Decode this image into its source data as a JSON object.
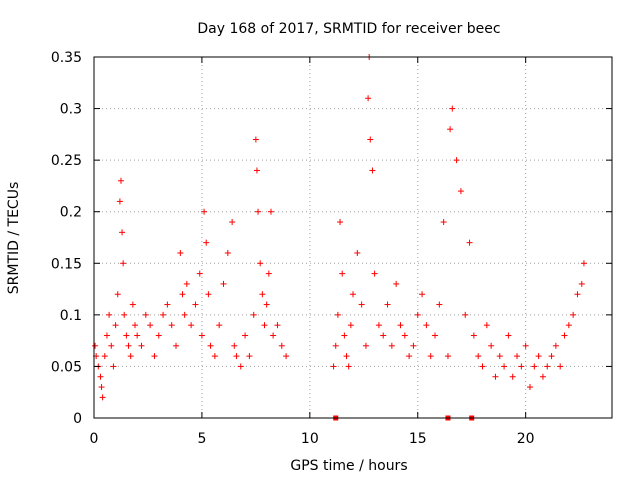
{
  "chart_data": {
    "type": "scatter",
    "title": "Day 168 of 2017, SRMTID for receiver beec",
    "xlabel": "GPS time / hours",
    "ylabel": "SRMTID / TECUs",
    "xlim": [
      0,
      24
    ],
    "ylim": [
      0,
      0.35
    ],
    "xticks": [
      0,
      5,
      10,
      15,
      20
    ],
    "xtick_labels": [
      "0",
      "5",
      "10",
      "15",
      "20"
    ],
    "yticks": [
      0,
      0.05,
      0.1,
      0.15,
      0.2,
      0.25,
      0.3,
      0.35
    ],
    "ytick_labels": [
      "0",
      "0.05",
      "0.1",
      "0.15",
      "0.2",
      "0.25",
      "0.3",
      "0.35"
    ],
    "grid": true,
    "marker": "+",
    "series_color": "#ff0000",
    "baseline_markers": {
      "description": "small square markers at zero",
      "x": [
        11.2,
        16.4,
        17.5
      ],
      "y": [
        0,
        0,
        0
      ]
    },
    "series": [
      {
        "name": "SRMTID",
        "notes": "dense scatter; main cluster 0.03-0.15 TECU; gap ~9-11 h; spikes up to 0.35 near 12.8 h",
        "x": [
          0.05,
          0.1,
          0.2,
          0.3,
          0.35,
          0.4,
          0.5,
          0.6,
          0.7,
          0.8,
          0.9,
          1.0,
          1.1,
          1.2,
          1.25,
          1.3,
          1.35,
          1.4,
          1.5,
          1.6,
          1.7,
          1.8,
          1.9,
          2.0,
          2.2,
          2.4,
          2.6,
          2.8,
          3.0,
          3.2,
          3.4,
          3.6,
          3.8,
          4.0,
          4.1,
          4.2,
          4.3,
          4.5,
          4.7,
          4.9,
          5.0,
          5.1,
          5.2,
          5.3,
          5.4,
          5.6,
          5.8,
          6.0,
          6.2,
          6.4,
          6.5,
          6.6,
          6.8,
          7.0,
          7.2,
          7.4,
          7.5,
          7.55,
          7.6,
          7.7,
          7.8,
          7.9,
          8.0,
          8.1,
          8.2,
          8.3,
          8.5,
          8.7,
          8.9,
          11.1,
          11.2,
          11.3,
          11.4,
          11.5,
          11.6,
          11.7,
          11.8,
          11.9,
          12.0,
          12.2,
          12.4,
          12.6,
          12.7,
          12.75,
          12.8,
          12.9,
          13.0,
          13.2,
          13.4,
          13.6,
          13.8,
          14.0,
          14.2,
          14.4,
          14.6,
          14.8,
          15.0,
          15.2,
          15.4,
          15.6,
          15.8,
          16.0,
          16.2,
          16.4,
          16.5,
          16.6,
          16.8,
          17.0,
          17.2,
          17.4,
          17.6,
          17.8,
          18.0,
          18.2,
          18.4,
          18.6,
          18.8,
          19.0,
          19.2,
          19.4,
          19.6,
          19.8,
          20.0,
          20.2,
          20.4,
          20.6,
          20.8,
          21.0,
          21.2,
          21.4,
          21.6,
          21.8,
          22.0,
          22.2,
          22.4,
          22.6,
          22.7
        ],
        "y": [
          0.07,
          0.06,
          0.05,
          0.04,
          0.03,
          0.02,
          0.06,
          0.08,
          0.1,
          0.07,
          0.05,
          0.09,
          0.12,
          0.21,
          0.23,
          0.18,
          0.15,
          0.1,
          0.08,
          0.07,
          0.06,
          0.11,
          0.09,
          0.08,
          0.07,
          0.1,
          0.09,
          0.06,
          0.08,
          0.1,
          0.11,
          0.09,
          0.07,
          0.16,
          0.12,
          0.1,
          0.13,
          0.09,
          0.11,
          0.14,
          0.08,
          0.2,
          0.17,
          0.12,
          0.07,
          0.06,
          0.09,
          0.13,
          0.16,
          0.19,
          0.07,
          0.06,
          0.05,
          0.08,
          0.06,
          0.1,
          0.27,
          0.24,
          0.2,
          0.15,
          0.12,
          0.09,
          0.11,
          0.14,
          0.2,
          0.08,
          0.09,
          0.07,
          0.06,
          0.05,
          0.07,
          0.1,
          0.19,
          0.14,
          0.08,
          0.06,
          0.05,
          0.09,
          0.12,
          0.16,
          0.11,
          0.07,
          0.31,
          0.35,
          0.27,
          0.24,
          0.14,
          0.09,
          0.08,
          0.11,
          0.07,
          0.13,
          0.09,
          0.08,
          0.06,
          0.07,
          0.1,
          0.12,
          0.09,
          0.06,
          0.08,
          0.11,
          0.19,
          0.06,
          0.28,
          0.3,
          0.25,
          0.22,
          0.1,
          0.17,
          0.08,
          0.06,
          0.05,
          0.09,
          0.07,
          0.04,
          0.06,
          0.05,
          0.08,
          0.04,
          0.06,
          0.05,
          0.07,
          0.03,
          0.05,
          0.06,
          0.04,
          0.05,
          0.06,
          0.07,
          0.05,
          0.08,
          0.09,
          0.1,
          0.12,
          0.13,
          0.15
        ]
      }
    ]
  }
}
